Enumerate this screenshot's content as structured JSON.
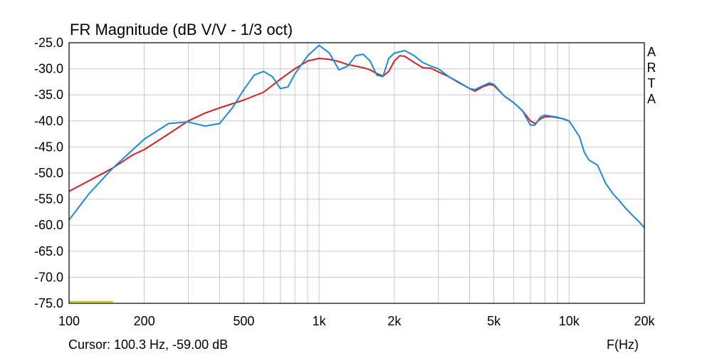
{
  "title": "FR Magnitude (dB V/V - 1/3 oct)",
  "brand_letters": [
    "A",
    "R",
    "T",
    "A"
  ],
  "cursor_text": "Cursor: 100.3 Hz, -59.00 dB",
  "xlabel": "F(Hz)",
  "chart_data": {
    "type": "line",
    "title": "FR Magnitude (dB V/V - 1/3 oct)",
    "xlabel": "F(Hz)",
    "ylabel": "",
    "x_scale": "log",
    "xlim": [
      100,
      20000
    ],
    "ylim": [
      -75,
      -25
    ],
    "grid": true,
    "x_tick_values": [
      100,
      200,
      500,
      1000,
      2000,
      5000,
      10000,
      20000
    ],
    "x_tick_labels": [
      "100",
      "200",
      "500",
      "1k",
      "2k",
      "5k",
      "10k",
      "20k"
    ],
    "y_tick_values": [
      -25,
      -30,
      -35,
      -40,
      -45,
      -50,
      -55,
      -60,
      -65,
      -70,
      -75
    ],
    "y_tick_labels": [
      "-25.0",
      "-30.0",
      "-35.0",
      "-40.0",
      "-45.0",
      "-50.0",
      "-55.0",
      "-60.0",
      "-65.0",
      "-70.0",
      "-75.0"
    ],
    "colors": {
      "red": "#d42020",
      "blue": "#1e8ad6",
      "marker": "#c8c800",
      "grid": "#c8c8c8"
    },
    "series": [
      {
        "color": "#d42020",
        "x": [
          100,
          120,
          150,
          180,
          200,
          250,
          300,
          350,
          400,
          500,
          600,
          700,
          800,
          900,
          1000,
          1100,
          1200,
          1300,
          1400,
          1500,
          1600,
          1700,
          1800,
          1900,
          2000,
          2100,
          2200,
          2400,
          2600,
          2800,
          3000,
          3300,
          3600,
          4000,
          4200,
          4500,
          4800,
          5000,
          5500,
          6000,
          6500,
          7000,
          7300,
          7700,
          8000,
          8500,
          9000,
          9500,
          10000
        ],
        "y": [
          -53.5,
          -51.5,
          -49,
          -46.5,
          -45.5,
          -42.5,
          -40,
          -38.5,
          -37.5,
          -36,
          -34.5,
          -32,
          -30,
          -28.5,
          -28,
          -28.2,
          -28.6,
          -29.2,
          -29.5,
          -29.8,
          -30.2,
          -30.9,
          -31.4,
          -30.5,
          -28.5,
          -27.5,
          -27.6,
          -28.8,
          -29.8,
          -29.9,
          -30.6,
          -31.5,
          -32.6,
          -33.8,
          -34.3,
          -33.5,
          -33.0,
          -33.2,
          -35.2,
          -36.5,
          -38.0,
          -40.0,
          -40.5,
          -39.6,
          -39.2,
          -39.2,
          -39.4,
          -39.6,
          -40.0
        ]
      },
      {
        "color": "#1e8ad6",
        "x": [
          100,
          120,
          150,
          200,
          250,
          300,
          350,
          400,
          450,
          500,
          550,
          600,
          650,
          700,
          750,
          800,
          900,
          1000,
          1100,
          1200,
          1300,
          1400,
          1500,
          1600,
          1700,
          1800,
          1900,
          2000,
          2200,
          2400,
          2600,
          2800,
          3000,
          3300,
          3600,
          4000,
          4200,
          4500,
          4800,
          5000,
          5500,
          6000,
          6500,
          7000,
          7300,
          7700,
          8000,
          8500,
          9000,
          10000,
          11000,
          11500,
          12000,
          12500,
          13000,
          14000,
          15000,
          16000,
          17000,
          18000,
          19000,
          20000
        ],
        "y": [
          -59,
          -54,
          -49,
          -43.5,
          -40.5,
          -40.2,
          -41,
          -40.5,
          -37.5,
          -34,
          -31.2,
          -30.5,
          -31.5,
          -33.8,
          -33.5,
          -31,
          -27.5,
          -25.5,
          -27,
          -30.2,
          -29.5,
          -27.5,
          -27.2,
          -28.5,
          -31.2,
          -31.5,
          -28,
          -27,
          -26.5,
          -27.5,
          -28.8,
          -29.5,
          -30,
          -31.5,
          -32.5,
          -33.8,
          -34,
          -33.3,
          -32.7,
          -33.0,
          -35.2,
          -36.5,
          -38.0,
          -40.8,
          -40.8,
          -39.2,
          -38.9,
          -39.1,
          -39.3,
          -40.0,
          -43.0,
          -46.0,
          -47.5,
          -48.0,
          -48.5,
          -52.0,
          -54.0,
          -55.5,
          -57.0,
          -58.2,
          -59.3,
          -60.5
        ]
      }
    ],
    "annotations": [
      {
        "type": "hline_segment",
        "x": [
          100,
          150
        ],
        "y": -74.7,
        "color": "#c8c800"
      }
    ]
  }
}
